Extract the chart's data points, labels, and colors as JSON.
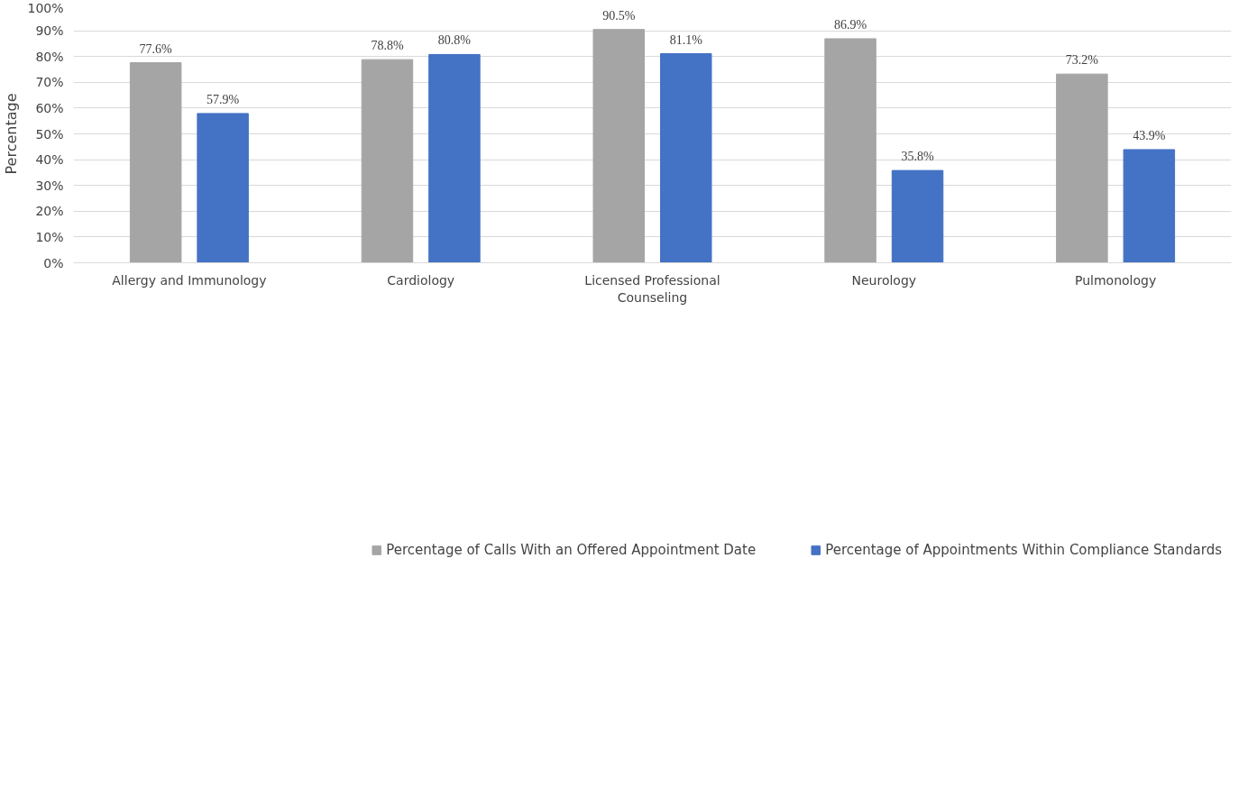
{
  "chart_data": {
    "type": "bar",
    "ylabel": "Percentage",
    "categories": [
      "Allergy and Immunology",
      "Cardiology",
      "Licensed Professional\nCounseling",
      "Neurology",
      "Pulmonology"
    ],
    "series": [
      {
        "name": "Percentage of Calls With an Offered Appointment Date",
        "color": "#a5a5a5",
        "values": [
          77.6,
          78.8,
          90.5,
          86.9,
          73.2
        ]
      },
      {
        "name": "Percentage of Appointments Within Compliance Standards",
        "color": "#4472c4",
        "values": [
          57.9,
          80.8,
          81.1,
          35.8,
          43.9
        ]
      }
    ],
    "ylim": [
      0,
      100
    ],
    "yticks": [
      {
        "value": 0,
        "label": "0%"
      },
      {
        "value": 10,
        "label": "10%"
      },
      {
        "value": 20,
        "label": "20%"
      },
      {
        "value": 30,
        "label": "30%"
      },
      {
        "value": 40,
        "label": "40%"
      },
      {
        "value": 50,
        "label": "50%"
      },
      {
        "value": 60,
        "label": "60%"
      },
      {
        "value": 70,
        "label": "70%"
      },
      {
        "value": 80,
        "label": "80%"
      },
      {
        "value": 90,
        "label": "90%"
      },
      {
        "value": 100,
        "label": "100%"
      }
    ],
    "value_labels": [
      [
        "77.6%",
        "78.8%",
        "90.5%",
        "86.9%",
        "73.2%"
      ],
      [
        "57.9%",
        "80.8%",
        "81.1%",
        "35.8%",
        "43.9%"
      ]
    ],
    "grid": "y",
    "legend": "bottom"
  }
}
